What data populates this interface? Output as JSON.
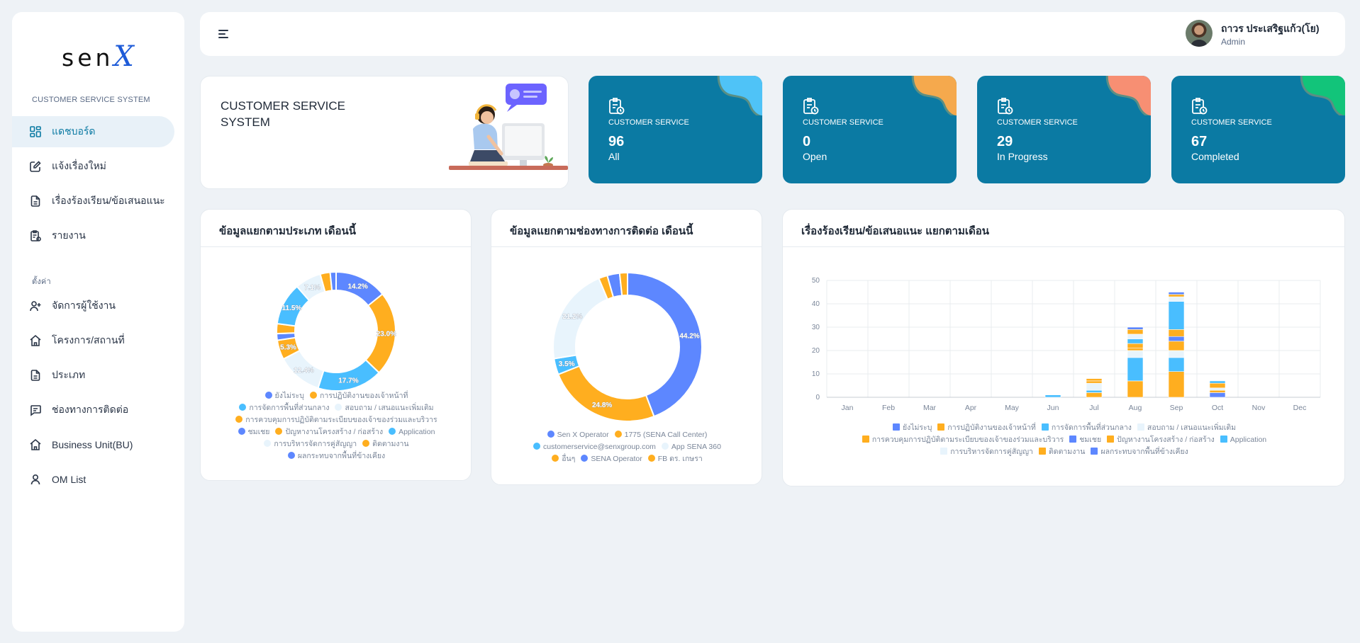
{
  "brand": {
    "logo_text": "sen",
    "logo_accent": "X"
  },
  "sidebar": {
    "section_main": "CUSTOMER SERVICE SYSTEM",
    "items_main": [
      {
        "label": "แดชบอร์ด",
        "icon": "dashboard-icon"
      },
      {
        "label": "แจ้งเรื่องใหม่",
        "icon": "edit-icon"
      },
      {
        "label": "เรื่องร้องเรียน/ข้อเสนอแนะ",
        "icon": "file-icon"
      },
      {
        "label": "รายงาน",
        "icon": "report-icon"
      }
    ],
    "section_settings": "ตั้งค่า",
    "items_settings": [
      {
        "label": "จัดการผู้ใช้งาน",
        "icon": "user-plus-icon"
      },
      {
        "label": "โครงการ/สถานที่",
        "icon": "home-icon"
      },
      {
        "label": "ประเภท",
        "icon": "file-icon"
      },
      {
        "label": "ช่องทางการติดต่อ",
        "icon": "message-icon"
      },
      {
        "label": "Business Unit(BU)",
        "icon": "home-icon"
      },
      {
        "label": "OM List",
        "icon": "user-icon"
      }
    ]
  },
  "header": {
    "user_name": "ถาวร ประเสริฐแก้ว(โย)",
    "user_role": "Admin"
  },
  "hero": {
    "title": "CUSTOMER SERVICE SYSTEM"
  },
  "stats": [
    {
      "label": "CUSTOMER SERVICE",
      "value": "96",
      "sub": "All",
      "blob_color": "#4fc3f7"
    },
    {
      "label": "CUSTOMER SERVICE",
      "value": "0",
      "sub": "Open",
      "blob_color": "#f5a94d"
    },
    {
      "label": "CUSTOMER SERVICE",
      "value": "29",
      "sub": "In Progress",
      "blob_color": "#f78f73"
    },
    {
      "label": "CUSTOMER SERVICE",
      "value": "67",
      "sub": "Completed",
      "blob_color": "#12c47a"
    }
  ],
  "colors": {
    "primary": "#0b7aa3",
    "blue": "#5d87ff",
    "orange": "#ffae1f",
    "cyan": "#49beff",
    "pale": "#e8f4fc"
  },
  "chart_data": [
    {
      "type": "pie",
      "title": "ข้อมูลแยกตามประเภท เดือนนี้",
      "labels": [
        "ยังไม่ระบุ",
        "การปฏิบัติงานของเจ้าหน้าที่",
        "การจัดการพื้นที่ส่วนกลาง",
        "สอบถาม / เสนอแนะเพิ่มเติม",
        "การควบคุมการปฏิบัติตามระเบียบของเจ้าของร่วมและบริวาร",
        "ชมเชย",
        "ปัญหางานโครงสร้าง / ก่อสร้าง",
        "Application",
        "การบริหารจัดการคู่สัญญา",
        "ติดตามงาน",
        "ผลกระทบจากพื้นที่ข้างเคียง"
      ],
      "colors": [
        "#5d87ff",
        "#ffae1f",
        "#49beff",
        "#e8f4fc",
        "#ffae1f",
        "#5d87ff",
        "#ffae1f",
        "#49beff",
        "#e8f4fc",
        "#ffae1f",
        "#5d87ff"
      ],
      "values": [
        14.2,
        23.0,
        17.7,
        12.4,
        5.3,
        1.8,
        2.7,
        11.5,
        7.1,
        2.7,
        1.6
      ],
      "value_labels": [
        "14.2%",
        "23.0%",
        "17.7%",
        "12.4%",
        "5.3%",
        "",
        "",
        "11.5%",
        "7.1%",
        "",
        ""
      ]
    },
    {
      "type": "pie",
      "title": "ข้อมูลแยกตามช่องทางการติดต่อ เดือนนี้",
      "labels": [
        "Sen X Operator",
        "1775 (SENA Call Center)",
        "customerservice@senxgroup.com",
        "App SENA 360",
        "อื่นๆ",
        "SENA Operator",
        "FB ดร. เกษรา"
      ],
      "colors": [
        "#5d87ff",
        "#ffae1f",
        "#49beff",
        "#e8f4fc",
        "#ffae1f",
        "#5d87ff",
        "#ffae1f"
      ],
      "values": [
        44.2,
        24.8,
        3.5,
        21.2,
        1.9,
        2.7,
        1.7
      ],
      "value_labels": [
        "44.2%",
        "24.8%",
        "3.5%",
        "21.2%",
        "",
        "",
        ""
      ]
    },
    {
      "type": "bar",
      "stacked": true,
      "title": "เรื่องร้องเรียน/ข้อเสนอแนะ แยกตามเดือน",
      "categories": [
        "Jan",
        "Feb",
        "Mar",
        "Apr",
        "May",
        "Jun",
        "Jul",
        "Aug",
        "Sep",
        "Oct",
        "Nov",
        "Dec"
      ],
      "ylim": [
        0,
        50
      ],
      "yticks": [
        0,
        10,
        20,
        30,
        40,
        50
      ],
      "grid": true,
      "legend_position": "bottom",
      "series": [
        {
          "name": "ยังไม่ระบุ",
          "color": "#5d87ff",
          "values": [
            0,
            0,
            0,
            0,
            0,
            0,
            0,
            0,
            0,
            2,
            0,
            0
          ]
        },
        {
          "name": "การปฏิบัติงานของเจ้าหน้าที่",
          "color": "#ffae1f",
          "values": [
            0,
            0,
            0,
            0,
            0,
            0,
            2,
            7,
            11,
            1,
            0,
            0
          ]
        },
        {
          "name": "การจัดการพื้นที่ส่วนกลาง",
          "color": "#49beff",
          "values": [
            0,
            0,
            0,
            0,
            0,
            1,
            1,
            10,
            6,
            0,
            0,
            0
          ]
        },
        {
          "name": "สอบถาม / เสนอแนะเพิ่มเติม",
          "color": "#e8f4fc",
          "values": [
            0,
            0,
            0,
            0,
            0,
            0,
            3,
            3,
            3,
            1,
            0,
            0
          ]
        },
        {
          "name": "การควบคุมการปฏิบัติตามระเบียบของเจ้าของร่วมและบริวาร",
          "color": "#ffae1f",
          "values": [
            0,
            0,
            0,
            0,
            0,
            0,
            1,
            1,
            4,
            2,
            0,
            0
          ]
        },
        {
          "name": "ชมเชย",
          "color": "#5d87ff",
          "values": [
            0,
            0,
            0,
            0,
            0,
            0,
            0,
            0,
            2,
            0,
            0,
            0
          ]
        },
        {
          "name": "ปัญหางานโครงสร้าง / ก่อสร้าง",
          "color": "#ffae1f",
          "values": [
            0,
            0,
            0,
            0,
            0,
            0,
            1,
            2,
            3,
            0,
            0,
            0
          ]
        },
        {
          "name": "Application",
          "color": "#49beff",
          "values": [
            0,
            0,
            0,
            0,
            0,
            0,
            0,
            2,
            12,
            1,
            0,
            0
          ]
        },
        {
          "name": "การบริหารจัดการคู่สัญญา",
          "color": "#e8f4fc",
          "values": [
            0,
            0,
            0,
            0,
            0,
            0,
            0,
            2,
            2,
            0,
            0,
            0
          ]
        },
        {
          "name": "ติดตามงาน",
          "color": "#ffae1f",
          "values": [
            0,
            0,
            0,
            0,
            0,
            0,
            0,
            2,
            1,
            0,
            0,
            0
          ]
        },
        {
          "name": "ผลกระทบจากพื้นที่ข้างเคียง",
          "color": "#5d87ff",
          "values": [
            0,
            0,
            0,
            0,
            0,
            0,
            0,
            1,
            1,
            0,
            0,
            0
          ]
        }
      ]
    }
  ]
}
